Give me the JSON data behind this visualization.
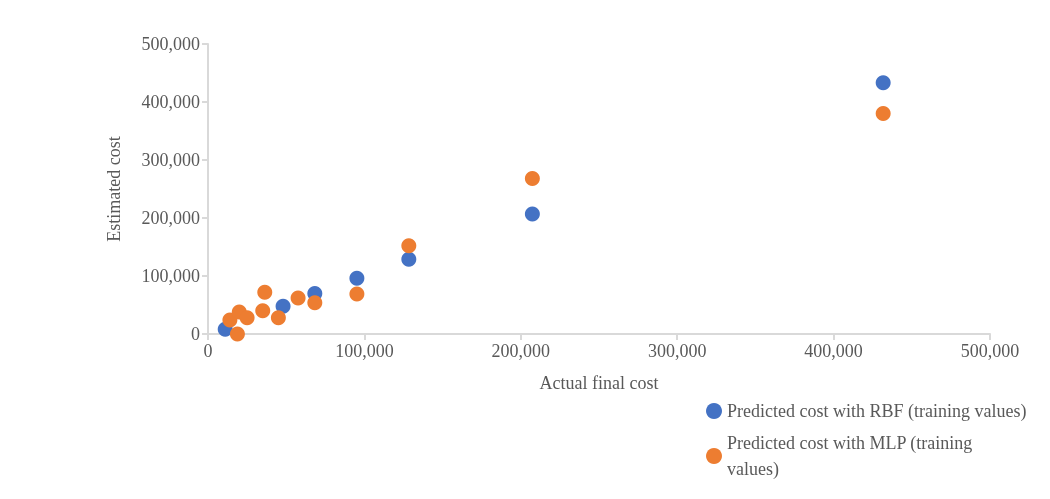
{
  "chart_data": {
    "type": "scatter",
    "xlabel": "Actual final cost",
    "ylabel": "Estimated cost",
    "series": [
      {
        "name": "Predicted cost with RBF (training values)",
        "color": "#4472c4",
        "x": [
          11000,
          48000,
          68300,
          95200,
          128400,
          207400,
          431700
        ],
        "values": [
          8000,
          48000,
          70000,
          96000,
          129000,
          207000,
          433000
        ]
      },
      {
        "name": "Predicted cost with MLP (training values)",
        "color": "#ed7d31",
        "x": [
          14000,
          18800,
          20000,
          25000,
          36300,
          35000,
          45000,
          57600,
          68300,
          95200,
          128400,
          207400,
          431700
        ],
        "values": [
          24000,
          0,
          38000,
          28000,
          72000,
          40000,
          28000,
          62000,
          54000,
          69000,
          152000,
          268000,
          380000
        ]
      }
    ],
    "xlim": [
      0,
      500000
    ],
    "xticks": [
      {
        "value": 0,
        "label": "0"
      },
      {
        "value": 100000,
        "label": "100,000"
      },
      {
        "value": 200000,
        "label": "200,000"
      },
      {
        "value": 300000,
        "label": "300,000"
      },
      {
        "value": 400000,
        "label": "400,000"
      },
      {
        "value": 500000,
        "label": "500,000"
      }
    ],
    "ylim": [
      0,
      500000
    ],
    "yticks": [
      {
        "value": 0,
        "label": "0"
      },
      {
        "value": 100000,
        "label": "100,000"
      },
      {
        "value": 200000,
        "label": "200,000"
      },
      {
        "value": 300000,
        "label": "300,000"
      },
      {
        "value": 400000,
        "label": "400,000"
      },
      {
        "value": 500000,
        "label": "500,000"
      }
    ],
    "grid": false,
    "legend": "bottom right",
    "marker": "circle"
  }
}
